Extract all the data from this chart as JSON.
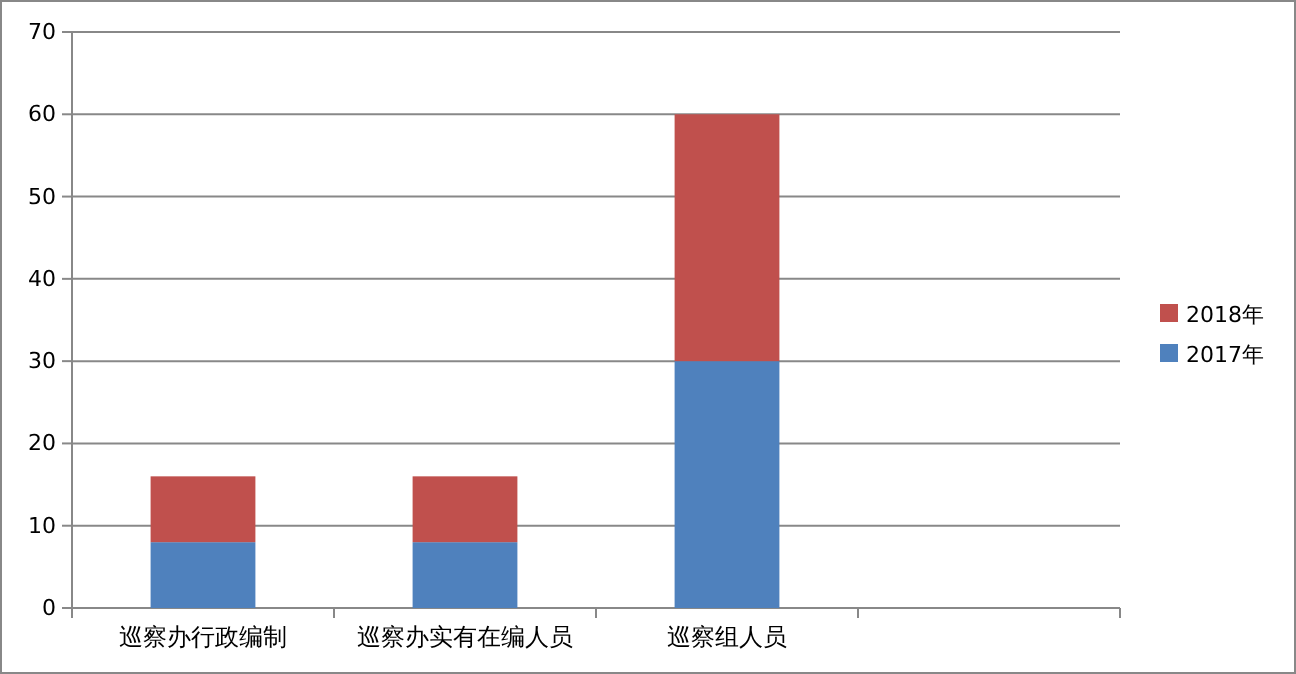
{
  "chart_data": {
    "type": "bar",
    "stacked": true,
    "categories": [
      "巡察办行政编制",
      "巡察办实有在编人员",
      "巡察组人员",
      null
    ],
    "series": [
      {
        "name": "2017年",
        "color": "#4f81bd",
        "values": [
          8,
          8,
          30,
          null
        ]
      },
      {
        "name": "2018年",
        "color": "#c0504d",
        "values": [
          8,
          8,
          30,
          null
        ]
      }
    ],
    "ylim": [
      0,
      70
    ],
    "yticks": [
      0,
      10,
      20,
      30,
      40,
      50,
      60,
      70
    ],
    "grid": "y",
    "legend": "right"
  }
}
